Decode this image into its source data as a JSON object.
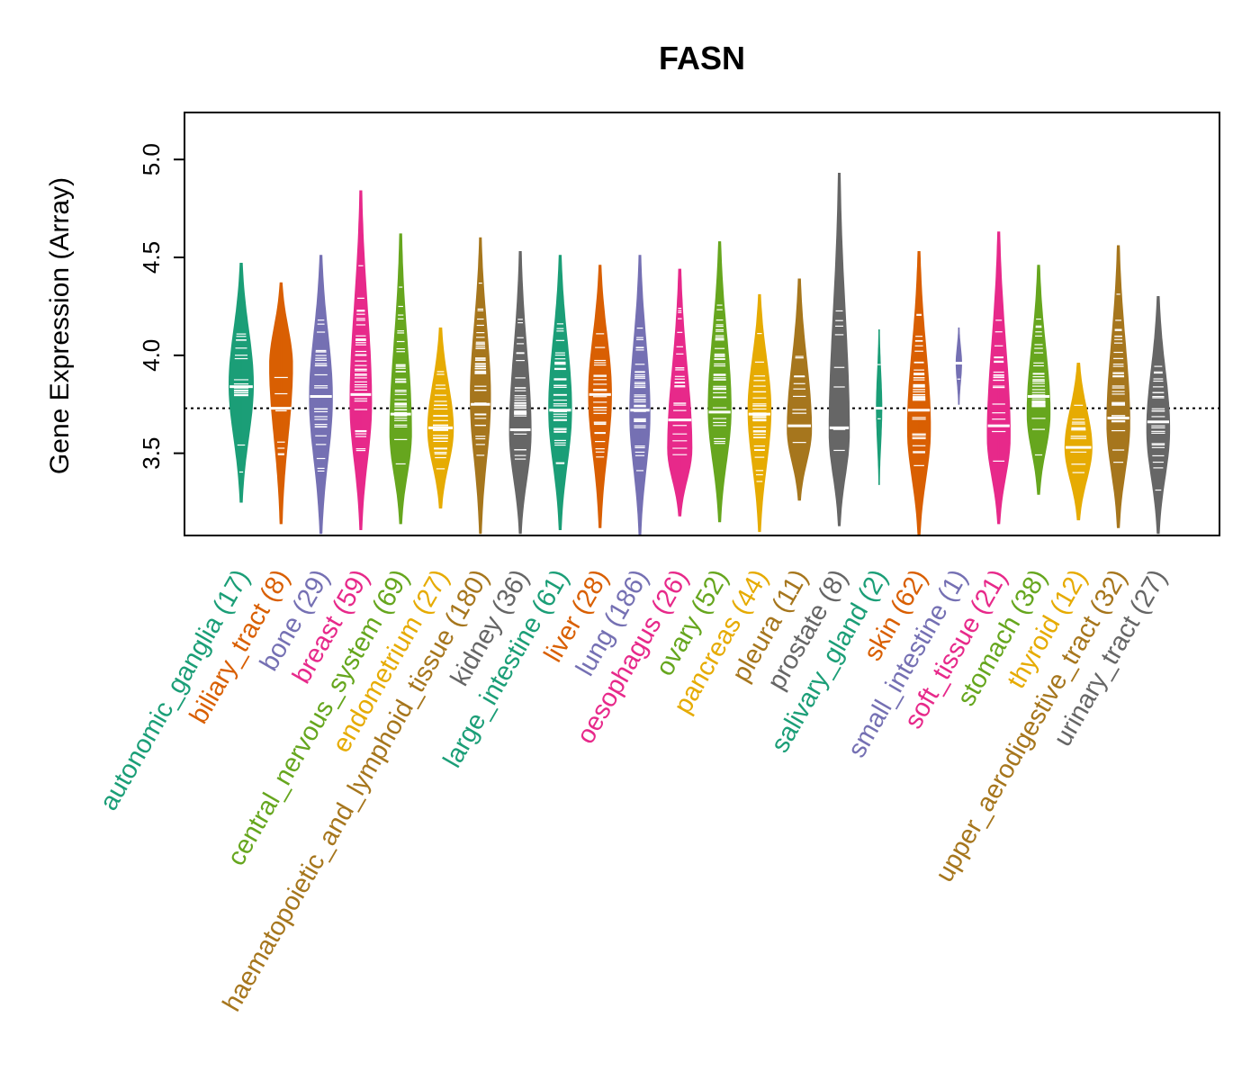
{
  "chart_data": {
    "type": "violin",
    "title": "FASN",
    "xlabel": "",
    "ylabel": "Gene Expression (Array)",
    "ylim": [
      3.08,
      5.24
    ],
    "yticks": [
      "3.5",
      "4.0",
      "4.5",
      "5.0"
    ],
    "reference_line": 3.73,
    "categories": [
      {
        "name": "autonomic_ganglia",
        "n": "(17)",
        "color": "#1b9e77",
        "min": 3.25,
        "max": 4.47,
        "median": 3.84,
        "peak": 3.85,
        "halfwidth": 0.9
      },
      {
        "name": "biliary_tract",
        "n": "(8)",
        "color": "#d95f02",
        "min": 3.14,
        "max": 4.37,
        "median": 3.73,
        "peak": 3.95,
        "halfwidth": 0.85
      },
      {
        "name": "bone",
        "n": "(29)",
        "color": "#7570b3",
        "min": 3.09,
        "max": 4.51,
        "median": 3.79,
        "peak": 3.78,
        "halfwidth": 0.85
      },
      {
        "name": "breast",
        "n": "(59)",
        "color": "#e7298a",
        "min": 3.11,
        "max": 4.84,
        "median": 3.8,
        "peak": 3.75,
        "halfwidth": 0.8
      },
      {
        "name": "central_nervous_system",
        "n": "(69)",
        "color": "#66a61e",
        "min": 3.14,
        "max": 4.62,
        "median": 3.7,
        "peak": 3.6,
        "halfwidth": 0.8
      },
      {
        "name": "endometrium",
        "n": "(27)",
        "color": "#e6ab02",
        "min": 3.22,
        "max": 4.14,
        "median": 3.63,
        "peak": 3.62,
        "halfwidth": 0.95
      },
      {
        "name": "haematopoietic_and_lymphoid_tissue",
        "n": "(180)",
        "color": "#a6761d",
        "min": 3.09,
        "max": 4.6,
        "median": 3.75,
        "peak": 3.78,
        "halfwidth": 0.75
      },
      {
        "name": "kidney",
        "n": "(36)",
        "color": "#666666",
        "min": 3.09,
        "max": 4.53,
        "median": 3.62,
        "peak": 3.6,
        "halfwidth": 0.8
      },
      {
        "name": "large_intestine",
        "n": "(61)",
        "color": "#1b9e77",
        "min": 3.11,
        "max": 4.51,
        "median": 3.72,
        "peak": 3.72,
        "halfwidth": 0.85
      },
      {
        "name": "liver",
        "n": "(28)",
        "color": "#d95f02",
        "min": 3.12,
        "max": 4.46,
        "median": 3.8,
        "peak": 3.8,
        "halfwidth": 0.85
      },
      {
        "name": "lung",
        "n": "(186)",
        "color": "#7570b3",
        "min": 3.08,
        "max": 4.51,
        "median": 3.72,
        "peak": 3.7,
        "halfwidth": 0.75
      },
      {
        "name": "oesophagus",
        "n": "(26)",
        "color": "#e7298a",
        "min": 3.18,
        "max": 4.44,
        "median": 3.67,
        "peak": 3.52,
        "halfwidth": 0.9
      },
      {
        "name": "ovary",
        "n": "(52)",
        "color": "#66a61e",
        "min": 3.15,
        "max": 4.58,
        "median": 3.71,
        "peak": 3.72,
        "halfwidth": 0.85
      },
      {
        "name": "pancreas",
        "n": "(44)",
        "color": "#e6ab02",
        "min": 3.1,
        "max": 4.31,
        "median": 3.7,
        "peak": 3.72,
        "halfwidth": 0.85
      },
      {
        "name": "pleura",
        "n": "(11)",
        "color": "#a6761d",
        "min": 3.26,
        "max": 4.39,
        "median": 3.64,
        "peak": 3.62,
        "halfwidth": 0.9
      },
      {
        "name": "prostate",
        "n": "(8)",
        "color": "#666666",
        "min": 3.13,
        "max": 4.93,
        "median": 3.63,
        "peak": 3.6,
        "halfwidth": 0.75
      },
      {
        "name": "salivary_gland",
        "n": "(2)",
        "color": "#1b9e77",
        "min": 3.34,
        "max": 4.13,
        "median": 3.73,
        "peak": 3.73,
        "halfwidth": 0.2
      },
      {
        "name": "skin",
        "n": "(62)",
        "color": "#d95f02",
        "min": 3.08,
        "max": 4.53,
        "median": 3.72,
        "peak": 3.62,
        "halfwidth": 0.85
      },
      {
        "name": "small_intestine",
        "n": "(1)",
        "color": "#7570b3",
        "min": 3.75,
        "max": 4.14,
        "median": 3.96,
        "peak": 3.96,
        "halfwidth": 0.2
      },
      {
        "name": "soft_tissue",
        "n": "(21)",
        "color": "#e7298a",
        "min": 3.14,
        "max": 4.63,
        "median": 3.64,
        "peak": 3.58,
        "halfwidth": 0.85
      },
      {
        "name": "stomach",
        "n": "(38)",
        "color": "#66a61e",
        "min": 3.29,
        "max": 4.46,
        "median": 3.79,
        "peak": 3.7,
        "halfwidth": 0.85
      },
      {
        "name": "thyroid",
        "n": "(12)",
        "color": "#e6ab02",
        "min": 3.16,
        "max": 3.96,
        "median": 3.53,
        "peak": 3.53,
        "halfwidth": 1.0
      },
      {
        "name": "upper_aerodigestive_tract",
        "n": "(32)",
        "color": "#a6761d",
        "min": 3.12,
        "max": 4.56,
        "median": 3.68,
        "peak": 3.65,
        "halfwidth": 0.85
      },
      {
        "name": "urinary_tract",
        "n": "(27)",
        "color": "#666666",
        "min": 3.09,
        "max": 4.3,
        "median": 3.66,
        "peak": 3.62,
        "halfwidth": 0.85
      }
    ]
  }
}
